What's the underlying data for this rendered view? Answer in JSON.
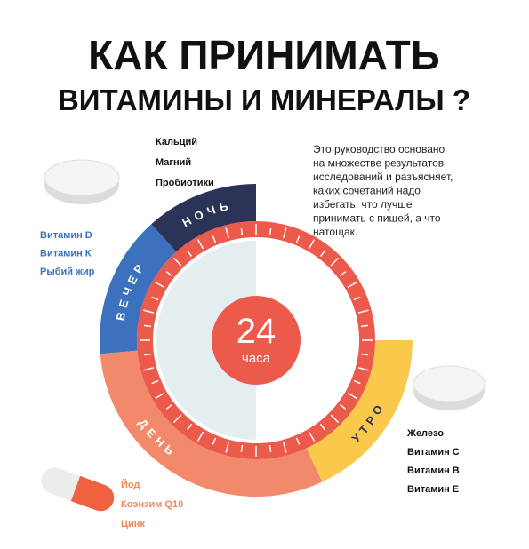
{
  "header": {
    "title_line1": "КАК ПРИНИМАТЬ",
    "title_line2": "ВИТАМИНЫ И МИНЕРАЛЫ ?"
  },
  "description": [
    "Это руководство основано",
    "на множестве результатов",
    "исследований и разъясняет,",
    "каких сочетаний надо",
    "избегать, что лучше",
    "принимать с пищей, а что",
    "натощак."
  ],
  "clock": {
    "center_number": "24",
    "center_unit": "часа",
    "segments": [
      {
        "label": "НОЧЬ",
        "items": [
          "Кальций",
          "Магний",
          "Пробиотики"
        ]
      },
      {
        "label": "ВЕЧЕР",
        "items": [
          "Витамин D",
          "Витамин К",
          "Рыбий жир"
        ]
      },
      {
        "label": "ДЕНЬ",
        "items": [
          "Йод",
          "Коэнзим Q10",
          "Цинк"
        ]
      },
      {
        "label": "УТРО",
        "items": [
          "Железо",
          "Витамин С",
          "Витамин В",
          "Витамин Е"
        ]
      }
    ]
  }
}
